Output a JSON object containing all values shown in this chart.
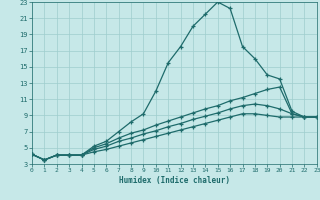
{
  "xlabel": "Humidex (Indice chaleur)",
  "bg_color": "#c6e8e8",
  "grid_color": "#9ecece",
  "line_color": "#1e6b6b",
  "xlim": [
    0,
    23
  ],
  "ylim": [
    3,
    23
  ],
  "xticks": [
    0,
    1,
    2,
    3,
    4,
    5,
    6,
    7,
    8,
    9,
    10,
    11,
    12,
    13,
    14,
    15,
    16,
    17,
    18,
    19,
    20,
    21,
    22,
    23
  ],
  "yticks": [
    3,
    5,
    7,
    9,
    11,
    13,
    15,
    17,
    19,
    21,
    23
  ],
  "line1_x": [
    0,
    1,
    2,
    3,
    4,
    5,
    6,
    7,
    8,
    9,
    10,
    11,
    12,
    13,
    14,
    15,
    16,
    17,
    18,
    19,
    20,
    21,
    22,
    23
  ],
  "line1_y": [
    4.2,
    3.5,
    4.1,
    4.1,
    4.1,
    5.2,
    5.8,
    7.0,
    8.2,
    9.2,
    12.0,
    15.5,
    17.5,
    20.0,
    21.5,
    23.0,
    22.2,
    17.5,
    16.0,
    14.0,
    13.5,
    9.5,
    8.8,
    8.8
  ],
  "line2_x": [
    0,
    1,
    2,
    3,
    4,
    5,
    6,
    7,
    8,
    9,
    10,
    11,
    12,
    13,
    14,
    15,
    16,
    17,
    18,
    19,
    20,
    21,
    22,
    23
  ],
  "line2_y": [
    4.2,
    3.5,
    4.1,
    4.1,
    4.1,
    5.0,
    5.5,
    6.2,
    6.8,
    7.2,
    7.8,
    8.3,
    8.8,
    9.3,
    9.8,
    10.2,
    10.8,
    11.2,
    11.7,
    12.2,
    12.5,
    9.2,
    8.8,
    8.8
  ],
  "line3_x": [
    0,
    1,
    2,
    3,
    4,
    5,
    6,
    7,
    8,
    9,
    10,
    11,
    12,
    13,
    14,
    15,
    16,
    17,
    18,
    19,
    20,
    21,
    22,
    23
  ],
  "line3_y": [
    4.2,
    3.5,
    4.1,
    4.1,
    4.1,
    4.8,
    5.2,
    5.8,
    6.2,
    6.7,
    7.1,
    7.6,
    8.0,
    8.5,
    8.9,
    9.3,
    9.8,
    10.2,
    10.4,
    10.2,
    9.8,
    9.2,
    8.8,
    8.8
  ],
  "line4_x": [
    0,
    1,
    2,
    3,
    4,
    5,
    6,
    7,
    8,
    9,
    10,
    11,
    12,
    13,
    14,
    15,
    16,
    17,
    18,
    19,
    20,
    21,
    22,
    23
  ],
  "line4_y": [
    4.2,
    3.5,
    4.1,
    4.1,
    4.1,
    4.5,
    4.8,
    5.2,
    5.6,
    6.0,
    6.4,
    6.8,
    7.2,
    7.6,
    8.0,
    8.4,
    8.8,
    9.2,
    9.2,
    9.0,
    8.8,
    8.8,
    8.8,
    8.8
  ]
}
